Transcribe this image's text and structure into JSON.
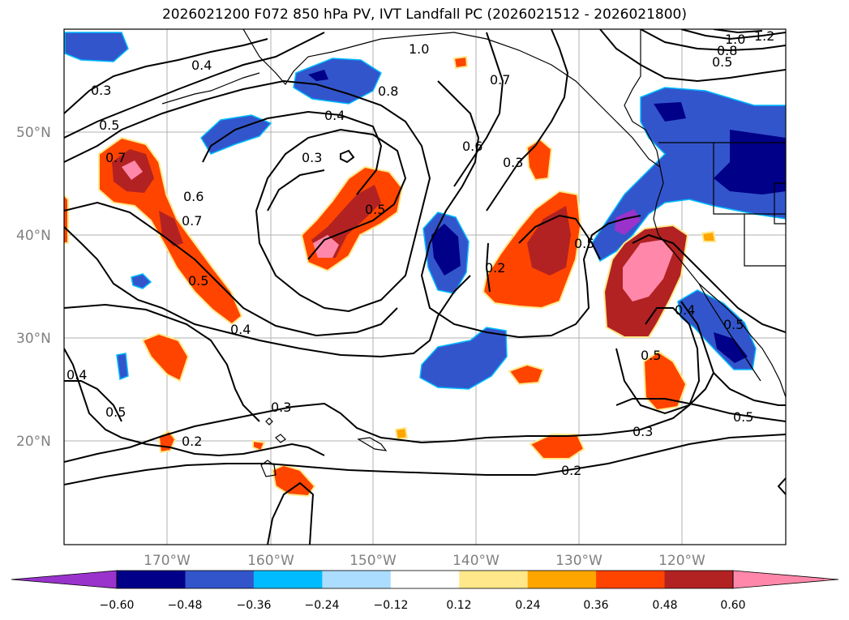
{
  "title": "2026021200 F072 850 hPa PV, IVT Landfall PC (2026021512 - 2026021800)",
  "axes": {
    "lat_labels": [
      "50°N",
      "40°N",
      "30°N",
      "20°N"
    ],
    "lon_labels": [
      "170°W",
      "160°W",
      "150°W",
      "140°W",
      "130°W",
      "120°W"
    ]
  },
  "contour_labels": [
    "0.4",
    "0.3",
    "0.5",
    "0.7",
    "0.6",
    "0.7",
    "0.4",
    "0.3",
    "0.8",
    "1.0",
    "0.7",
    "0.6",
    "0.3",
    "0.5",
    "0.5",
    "0.2",
    "0.5",
    "0.4",
    "0.4",
    "0.5",
    "0.3",
    "0.2",
    "0.2",
    "0.3",
    "0.5",
    "0.4",
    "0.5",
    "0.8",
    "1.0",
    "1.2",
    "0.5",
    "0.5"
  ],
  "colorbar": {
    "ticks": [
      "−0.60",
      "−0.48",
      "−0.36",
      "−0.24",
      "−0.12",
      "0.12",
      "0.24",
      "0.36",
      "0.48",
      "0.60"
    ],
    "colors": [
      "#9933cc",
      "#000088",
      "#3355cc",
      "#00bbff",
      "#aaddff",
      "#ffffff",
      "#ffe88a",
      "#ffa500",
      "#ff4400",
      "#b22222",
      "#ff88aa"
    ]
  },
  "colors": {
    "land_outline": "#000000",
    "grid": "#b0b0b0"
  }
}
